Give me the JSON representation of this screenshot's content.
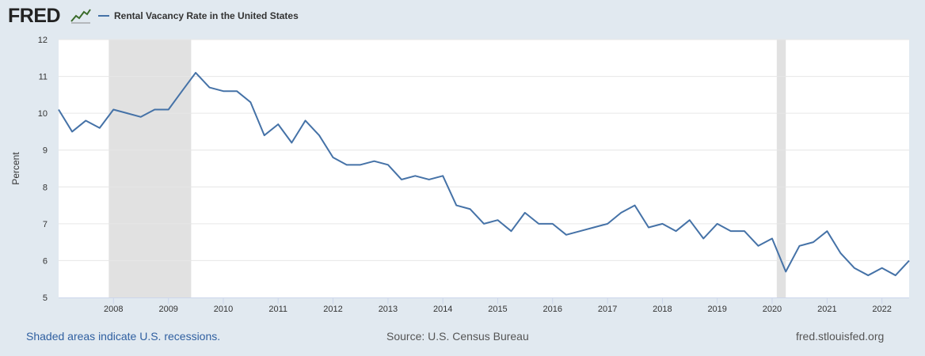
{
  "header": {
    "logo_text": "FRED",
    "logo_icon": "trend-line-icon",
    "legend_label": "Rental Vacancy Rate in the United States"
  },
  "footer": {
    "recession_note": "Shaded areas indicate U.S. recessions.",
    "source": "Source: U.S. Census Bureau",
    "site": "fred.stlouisfed.org"
  },
  "colors": {
    "line": "#4572a7",
    "recession": "#e1e1e1",
    "grid": "#e6e6e6",
    "page_background": "#e1e9f0",
    "plot_background": "#ffffff"
  },
  "chart_data": {
    "type": "line",
    "title": "Rental Vacancy Rate in the United States",
    "ylabel": "Percent",
    "xlabel": "",
    "ylim": [
      5,
      12
    ],
    "xlim": [
      "2007-01-01",
      "2022-07-01"
    ],
    "yticks": [
      5,
      6,
      7,
      8,
      9,
      10,
      11,
      12
    ],
    "xticks": [
      "2008",
      "2009",
      "2010",
      "2011",
      "2012",
      "2013",
      "2014",
      "2015",
      "2016",
      "2017",
      "2018",
      "2019",
      "2020",
      "2021",
      "2022"
    ],
    "grid": true,
    "legend": "top-left",
    "recessions": [
      {
        "start": "2007-12-01",
        "end": "2009-06-01"
      },
      {
        "start": "2020-02-01",
        "end": "2020-04-01"
      }
    ],
    "series": [
      {
        "name": "Rental Vacancy Rate in the United States",
        "x": [
          "2007-01-01",
          "2007-04-01",
          "2007-07-01",
          "2007-10-01",
          "2008-01-01",
          "2008-04-01",
          "2008-07-01",
          "2008-10-01",
          "2009-01-01",
          "2009-04-01",
          "2009-07-01",
          "2009-10-01",
          "2010-01-01",
          "2010-04-01",
          "2010-07-01",
          "2010-10-01",
          "2011-01-01",
          "2011-04-01",
          "2011-07-01",
          "2011-10-01",
          "2012-01-01",
          "2012-04-01",
          "2012-07-01",
          "2012-10-01",
          "2013-01-01",
          "2013-04-01",
          "2013-07-01",
          "2013-10-01",
          "2014-01-01",
          "2014-04-01",
          "2014-07-01",
          "2014-10-01",
          "2015-01-01",
          "2015-04-01",
          "2015-07-01",
          "2015-10-01",
          "2016-01-01",
          "2016-04-01",
          "2016-07-01",
          "2016-10-01",
          "2017-01-01",
          "2017-04-01",
          "2017-07-01",
          "2017-10-01",
          "2018-01-01",
          "2018-04-01",
          "2018-07-01",
          "2018-10-01",
          "2019-01-01",
          "2019-04-01",
          "2019-07-01",
          "2019-10-01",
          "2020-01-01",
          "2020-04-01",
          "2020-07-01",
          "2020-10-01",
          "2021-01-01",
          "2021-04-01",
          "2021-07-01",
          "2021-10-01",
          "2022-01-01",
          "2022-04-01",
          "2022-07-01"
        ],
        "values": [
          10.1,
          9.5,
          9.8,
          9.6,
          10.1,
          10.0,
          9.9,
          10.1,
          10.1,
          10.6,
          11.1,
          10.7,
          10.6,
          10.6,
          10.3,
          9.4,
          9.7,
          9.2,
          9.8,
          9.4,
          8.8,
          8.6,
          8.6,
          8.7,
          8.6,
          8.2,
          8.3,
          8.2,
          8.3,
          7.5,
          7.4,
          7.0,
          7.1,
          6.8,
          7.3,
          7.0,
          7.0,
          6.7,
          6.8,
          6.9,
          7.0,
          7.3,
          7.5,
          6.9,
          7.0,
          6.8,
          7.1,
          6.6,
          7.0,
          6.8,
          6.8,
          6.4,
          6.6,
          5.7,
          6.4,
          6.5,
          6.8,
          6.2,
          5.8,
          5.6,
          5.8,
          5.6,
          6.0
        ]
      }
    ]
  }
}
